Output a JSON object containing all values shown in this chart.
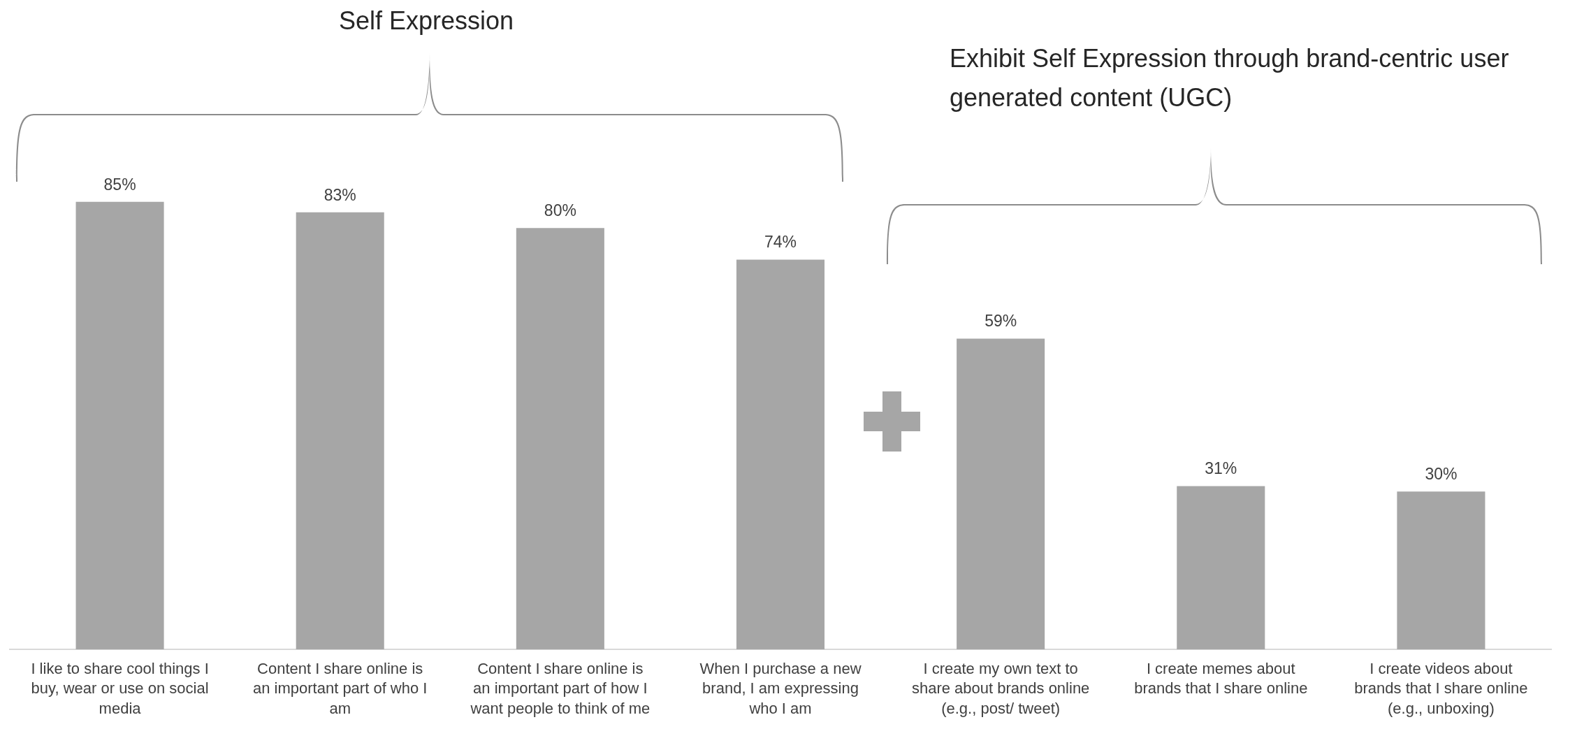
{
  "chart_data": {
    "type": "bar",
    "categories": [
      "I like to share cool things I buy, wear or use on social media",
      "Content I share online is an important part of who I am",
      "Content I share online is an important part of how I want people to think of me",
      "When I purchase a new brand, I am expressing who I am",
      "I create my own text to share about brands online (e.g., post/ tweet)",
      "I create memes about brands that I share online",
      "I create videos about brands that I share online (e.g., unboxing)"
    ],
    "values": [
      85,
      83,
      80,
      74,
      59,
      31,
      30
    ],
    "color": "#a6a6a6",
    "data_labels": true,
    "value_labels": [
      "85%",
      "83%",
      "80%",
      "74%",
      "59%",
      "31%",
      "30%"
    ],
    "grid": false,
    "legend": false,
    "annotations": [
      "Self Expression",
      "Exhibit Self Expression through brand-centric user generated content (UGC)"
    ]
  }
}
